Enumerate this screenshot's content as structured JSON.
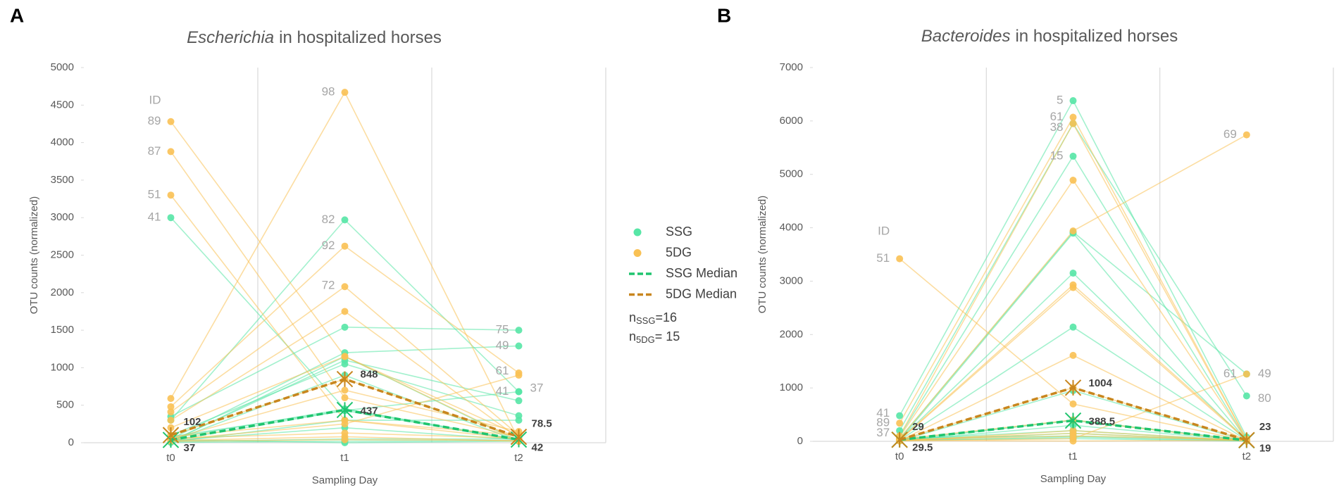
{
  "chart_data": [
    {
      "type": "line",
      "panel": "A",
      "title_genus": "Escherichia",
      "title": "in hospitalized horses",
      "x_label": "Sampling Day",
      "y_label": "OTU counts (normalized)",
      "categories": [
        "t0",
        "t1",
        "t2"
      ],
      "ylim": [
        0,
        5000
      ],
      "yticks": [
        0,
        500,
        1000,
        1500,
        2000,
        2500,
        3000,
        3500,
        4000,
        4500,
        5000
      ],
      "series": [
        {
          "name": "SSG",
          "color": "#57e6a6",
          "lines": [
            [
              3000,
              450,
              30
            ],
            [
              300,
              2970,
              680
            ],
            [
              350,
              1540,
              1500
            ],
            [
              50,
              1200,
              1290
            ],
            [
              20,
              1100,
              560
            ],
            [
              100,
              1050,
              360
            ],
            [
              30,
              430,
              680
            ],
            [
              10,
              300,
              300
            ],
            [
              5,
              20,
              30
            ],
            [
              40,
              0,
              20
            ],
            [
              80,
              430,
              30
            ],
            [
              20,
              900,
              20
            ],
            [
              15,
              50,
              50
            ],
            [
              30,
              200,
              40
            ],
            [
              10,
              1150,
              20
            ],
            [
              60,
              450,
              42
            ]
          ]
        },
        {
          "name": "5DG",
          "color": "#f9c154",
          "lines": [
            [
              4280,
              1150,
              30
            ],
            [
              3880,
              600,
              80
            ],
            [
              3300,
              300,
              100
            ],
            [
              590,
              4670,
              40
            ],
            [
              480,
              2620,
              930
            ],
            [
              410,
              2080,
              100
            ],
            [
              300,
              1750,
              60
            ],
            [
              200,
              1150,
              100
            ],
            [
              100,
              848,
              78.5
            ],
            [
              50,
              700,
              150
            ],
            [
              80,
              300,
              50
            ],
            [
              60,
              130,
              60
            ],
            [
              40,
              250,
              900
            ],
            [
              30,
              80,
              20
            ],
            [
              20,
              40,
              30
            ]
          ]
        },
        {
          "name": "SSG Median",
          "color": "#1fc46e",
          "values": [
            37,
            437,
            42
          ]
        },
        {
          "name": "5DG Median",
          "color": "#c8861e",
          "values": [
            102,
            848,
            78.5
          ]
        }
      ],
      "annotations": [
        {
          "text": "ID",
          "x": "t0",
          "y": 4560,
          "side": "left"
        },
        {
          "text": "89",
          "x": "t0",
          "y": 4280,
          "side": "left"
        },
        {
          "text": "87",
          "x": "t0",
          "y": 3880,
          "side": "left"
        },
        {
          "text": "51",
          "x": "t0",
          "y": 3300,
          "side": "left"
        },
        {
          "text": "41",
          "x": "t0",
          "y": 3000,
          "side": "left"
        },
        {
          "text": "98",
          "x": "t1",
          "y": 4670,
          "side": "left"
        },
        {
          "text": "82",
          "x": "t1",
          "y": 2970,
          "side": "left"
        },
        {
          "text": "92",
          "x": "t1",
          "y": 2620,
          "side": "left"
        },
        {
          "text": "72",
          "x": "t1",
          "y": 2090,
          "side": "left"
        },
        {
          "text": "75",
          "x": "t2",
          "y": 1500,
          "side": "left"
        },
        {
          "text": "49",
          "x": "t2",
          "y": 1290,
          "side": "left"
        },
        {
          "text": "61",
          "x": "t2",
          "y": 950,
          "side": "left"
        },
        {
          "text": "41",
          "x": "t2",
          "y": 680,
          "side": "left"
        },
        {
          "text": "37",
          "x": "t2",
          "y": 720,
          "side": "right"
        }
      ]
    },
    {
      "type": "line",
      "panel": "B",
      "title_genus": "Bacteroides",
      "title": "in hospitalized horses",
      "x_label": "Sampling Day",
      "y_label": "OTU counts (normalized)",
      "categories": [
        "t0",
        "t1",
        "t2"
      ],
      "ylim": [
        0,
        7000
      ],
      "yticks": [
        0,
        1000,
        2000,
        3000,
        4000,
        5000,
        6000,
        7000
      ],
      "series": [
        {
          "name": "SSG",
          "color": "#57e6a6",
          "lines": [
            [
              480,
              6380,
              80
            ],
            [
              200,
              5950,
              850
            ],
            [
              100,
              5340,
              20
            ],
            [
              50,
              3920,
              1260
            ],
            [
              30,
              3150,
              10
            ],
            [
              20,
              2140,
              20
            ],
            [
              10,
              950,
              10
            ],
            [
              5,
              400,
              19
            ],
            [
              40,
              200,
              10
            ],
            [
              60,
              100,
              20
            ],
            [
              30,
              50,
              5
            ],
            [
              10,
              300,
              10
            ],
            [
              20,
              3900,
              15
            ],
            [
              15,
              150,
              10
            ],
            [
              10,
              80,
              5
            ],
            [
              30,
              388.5,
              19
            ]
          ]
        },
        {
          "name": "5DG",
          "color": "#f9c154",
          "lines": [
            [
              3420,
              700,
              10
            ],
            [
              340,
              6070,
              40
            ],
            [
              100,
              5950,
              30
            ],
            [
              80,
              4890,
              20
            ],
            [
              50,
              3940,
              5740
            ],
            [
              30,
              2930,
              40
            ],
            [
              20,
              2880,
              20
            ],
            [
              10,
              1610,
              10
            ],
            [
              29,
              1004,
              23
            ],
            [
              40,
              400,
              5
            ],
            [
              20,
              150,
              10
            ],
            [
              10,
              50,
              1260
            ],
            [
              15,
              5,
              20
            ],
            [
              5,
              200,
              10
            ],
            [
              30,
              100,
              30
            ]
          ]
        },
        {
          "name": "SSG Median",
          "color": "#1fc46e",
          "values": [
            29.5,
            388.5,
            19
          ]
        },
        {
          "name": "5DG Median",
          "color": "#c8861e",
          "values": [
            29,
            1004,
            23
          ]
        }
      ],
      "annotations": [
        {
          "text": "ID",
          "x": "t0",
          "y": 3930,
          "side": "left"
        },
        {
          "text": "51",
          "x": "t0",
          "y": 3420,
          "side": "left"
        },
        {
          "text": "41",
          "x": "t0",
          "y": 520,
          "side": "left"
        },
        {
          "text": "89",
          "x": "t0",
          "y": 340,
          "side": "left"
        },
        {
          "text": "37",
          "x": "t0",
          "y": 150,
          "side": "left"
        },
        {
          "text": "5",
          "x": "t1",
          "y": 6380,
          "side": "left"
        },
        {
          "text": "61",
          "x": "t1",
          "y": 6070,
          "side": "left"
        },
        {
          "text": "38",
          "x": "t1",
          "y": 5870,
          "side": "left"
        },
        {
          "text": "15",
          "x": "t1",
          "y": 5340,
          "side": "left"
        },
        {
          "text": "69",
          "x": "t2",
          "y": 5740,
          "side": "left"
        },
        {
          "text": "61",
          "x": "t2",
          "y": 1260,
          "side": "left"
        },
        {
          "text": "49",
          "x": "t2",
          "y": 1260,
          "side": "right"
        },
        {
          "text": "80",
          "x": "t2",
          "y": 800,
          "side": "right"
        }
      ]
    }
  ],
  "notes": [
    {
      "base": "n",
      "sub": "SSG",
      "text": "=16"
    },
    {
      "base": "n",
      "sub": "5DG",
      "text": "= 15"
    }
  ]
}
